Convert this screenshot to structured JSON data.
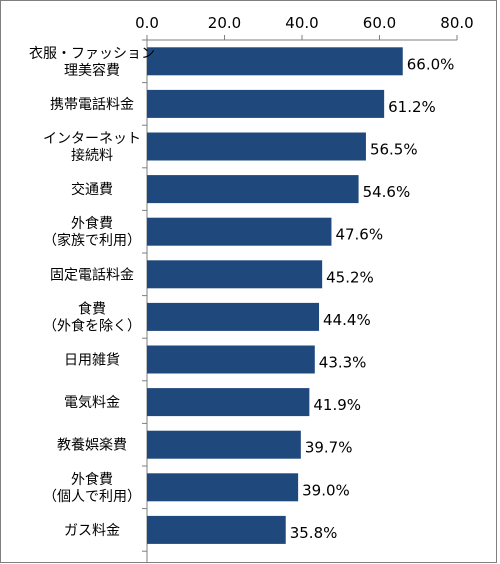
{
  "chart_data": {
    "type": "bar",
    "orientation": "horizontal",
    "categories": [
      [
        "衣服・ファッション",
        "理美容費"
      ],
      [
        "携帯電話料金"
      ],
      [
        "インターネット",
        "接続料"
      ],
      [
        "交通費"
      ],
      [
        "外食費",
        "（家族で利用）"
      ],
      [
        "固定電話料金"
      ],
      [
        "食費",
        "（外食を除く）"
      ],
      [
        "日用雑貨"
      ],
      [
        "電気料金"
      ],
      [
        "教養娯楽費"
      ],
      [
        "外食費",
        "（個人で利用）"
      ],
      [
        "ガス料金"
      ]
    ],
    "values": [
      66.0,
      61.2,
      56.5,
      54.6,
      47.6,
      45.2,
      44.4,
      43.3,
      41.9,
      39.7,
      39.0,
      35.8
    ],
    "data_labels": [
      "66.0%",
      "61.2%",
      "56.5%",
      "54.6%",
      "47.6%",
      "45.2%",
      "44.4%",
      "43.3%",
      "41.9%",
      "39.7%",
      "39.0%",
      "35.8%"
    ],
    "xlim": [
      0,
      80
    ],
    "x_ticks": [
      0,
      20,
      40,
      60,
      80
    ],
    "x_tick_labels": [
      "0.0",
      "20.0",
      "40.0",
      "60.0",
      "80.0"
    ],
    "x_axis_position": "top",
    "bar_color": "#1f497d",
    "grid": false,
    "legend": "none"
  }
}
